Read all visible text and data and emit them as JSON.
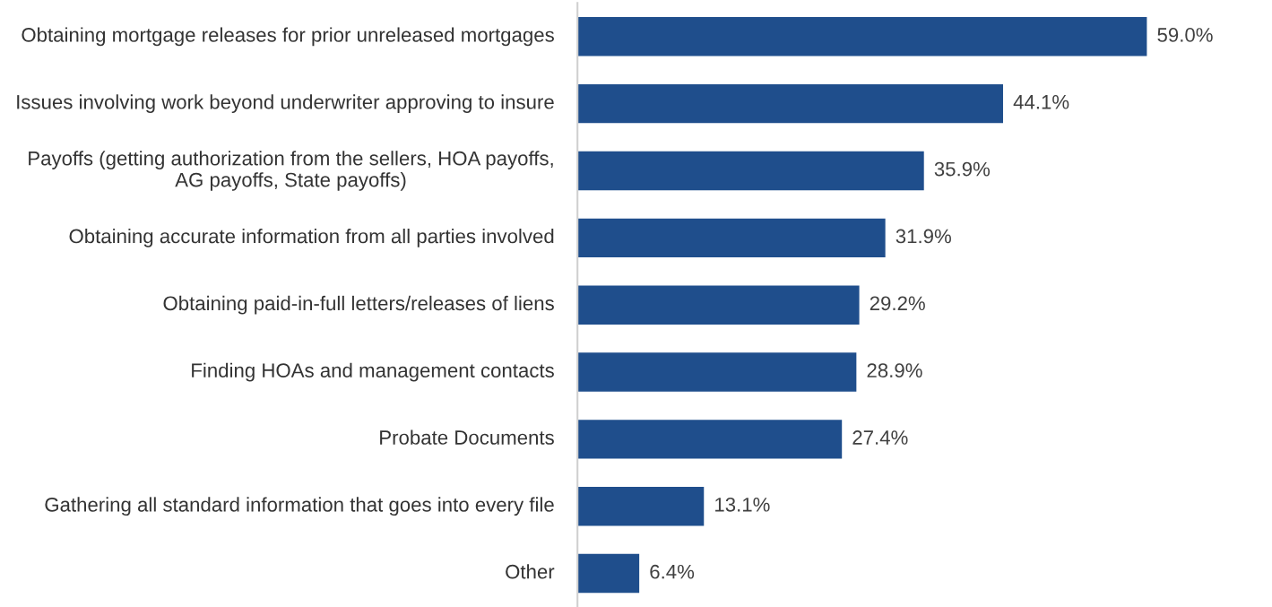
{
  "chart_data": {
    "type": "bar",
    "orientation": "horizontal",
    "tick_labels": "y",
    "categories": [
      "Obtaining mortgage releases for prior unreleased mortgages",
      "Issues involving work beyond underwriter approving to insure",
      "Payoffs (getting authorization from the sellers, HOA payoffs, AG payoffs, State payoffs)",
      "Obtaining accurate information from all parties involved",
      "Obtaining paid-in-full letters/releases of liens",
      "Finding HOAs and management contacts",
      "Probate Documents",
      "Gathering all standard information that goes into every file",
      "Other"
    ],
    "values": [
      59.0,
      44.1,
      35.9,
      31.9,
      29.2,
      28.9,
      27.4,
      13.1,
      6.4
    ],
    "value_labels": [
      "59.0%",
      "44.1%",
      "35.9%",
      "31.9%",
      "29.2%",
      "28.9%",
      "27.4%",
      "13.1%",
      "6.4%"
    ],
    "color": "#1f4e8c"
  }
}
